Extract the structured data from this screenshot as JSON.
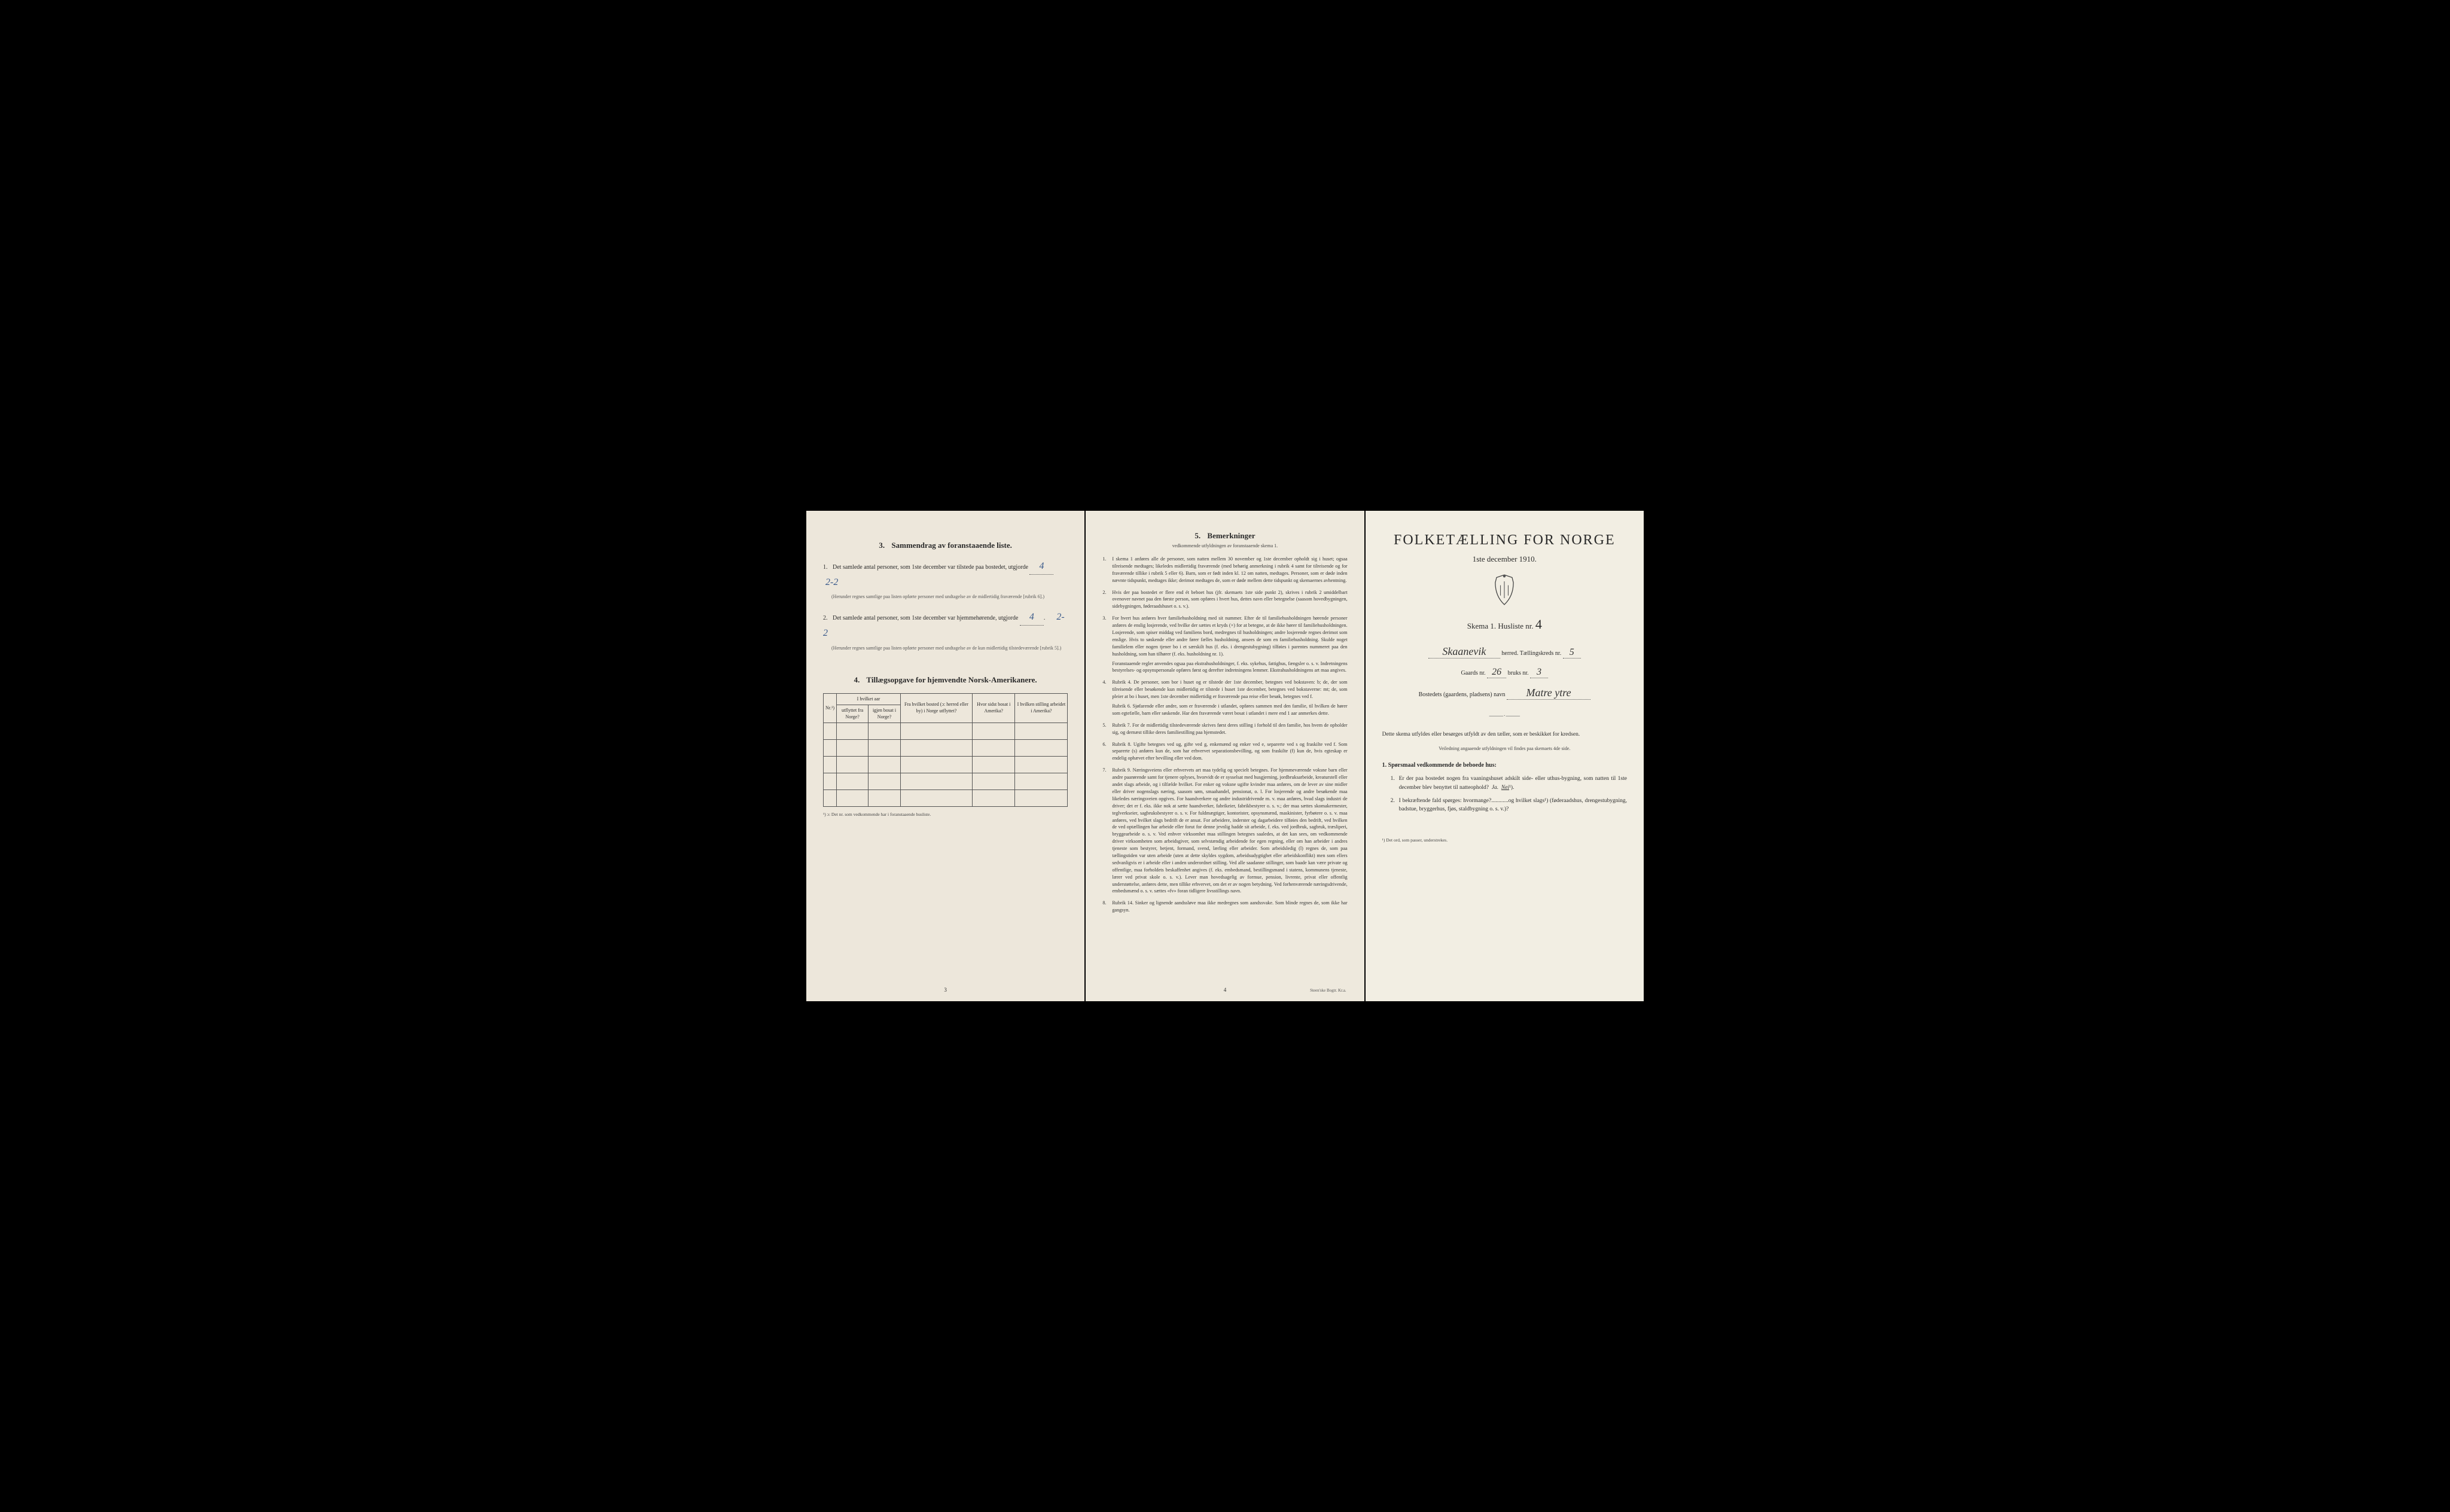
{
  "left": {
    "section3_title": "Sammendrag av foranstaaende liste.",
    "section3_num": "3.",
    "item1_label": "Det samlede antal personer, som 1ste december var tilstede paa bostedet, utgjorde",
    "item1_num": "1.",
    "item1_value": "4",
    "item1_value2": "2-2",
    "item1_note": "(Herunder regnes samtlige paa listen opførte personer med undtagelse av de midlertidig fraværende [rubrik 6].)",
    "item2_label": "Det samlede antal personer, som 1ste december var hjemmehørende, utgjorde",
    "item2_num": "2.",
    "item2_value": "4",
    "item2_value2": "2-2",
    "item2_note": "(Herunder regnes samtlige paa listen opførte personer med undtagelse av de kun midlertidig tilstedeværende [rubrik 5].)",
    "section4_title": "Tillægsopgave for hjemvendte Norsk-Amerikanere.",
    "section4_num": "4.",
    "table_headers": {
      "col1": "Nr.¹)",
      "col2_group": "I hvilket aar",
      "col2a": "utflyttet fra Norge?",
      "col2b": "igjen bosat i Norge?",
      "col3": "Fra hvilket bosted (ɔ: herred eller by) i Norge utflyttet?",
      "col4": "Hvor sidst bosat i Amerika?",
      "col5": "I hvilken stilling arbeidet i Amerika?"
    },
    "table_footnote": "¹) ɔ: Det nr. som vedkommende har i foranstaaende husliste.",
    "page_num": "3"
  },
  "mid": {
    "section5_title": "Bemerkninger",
    "section5_num": "5.",
    "subtitle": "vedkommende utfyldningen av foranstaaende skema 1.",
    "remarks": [
      {
        "n": "1.",
        "t": "I skema 1 anføres alle de personer, som natten mellem 30 november og 1ste december opholdt sig i huset; ogsaa tilreisende medtages; likeledes midlertidig fraværende (med behørig anmerkning i rubrik 4 samt for tilreisende og for fraværende tillike i rubrik 5 eller 6). Barn, som er født inden kl. 12 om natten, medtages. Personer, som er døde inden nævnte tidspunkt, medtages ikke; derimot medtages de, som er døde mellem dette tidspunkt og skemaernes avhentning."
      },
      {
        "n": "2.",
        "t": "Hvis der paa bostedet er flere end ét beboet hus (jfr. skemaets 1ste side punkt 2), skrives i rubrik 2 umiddelbart ovenover navnet paa den første person, som opføres i hvert hus, dettes navn eller betegnelse (saasom hovedbygningen, sidebygningen, føderaadshuset o. s. v.)."
      },
      {
        "n": "3.",
        "t": "For hvert hus anføres hver familiehusholdning med sit nummer. Efter de til familiehusholdningen hørende personer anføres de enslig losjerende, ved hvilke der sættes et kryds (×) for at betegne, at de ikke hører til familiehusholdningen. Losjerende, som spiser middag ved familiens bord, medregnes til husholdningen; andre losjerende regnes derimot som enslige. Hvis to søskende eller andre fører fælles husholdning, ansees de som en familiehusholdning. Skulde noget familielem eller nogen tjener bo i et særskilt hus (f. eks. i drengestubygning) tilføies i parentes nummeret paa den husholdning, som han tilhører (f. eks. husholdning nr. 1).",
        "sub": "Foranstaaende regler anvendes ogsaa paa ekstrahusholdninger, f. eks. sykehus, fattighus, fængsler o. s. v. Indretningens bestyrelses- og opsynspersonale opføres først og derefter indretningens lemmer. Ekstrahusholdningens art maa angives."
      },
      {
        "n": "4.",
        "t": "Rubrik 4. De personer, som bor i huset og er tilstede der 1ste december, betegnes ved bokstaven: b; de, der som tilreisende eller besøkende kun midlertidig er tilstede i huset 1ste december, betegnes ved bokstaverne: mt; de, som pleier at bo i huset, men 1ste december midlertidig er fraværende paa reise eller besøk, betegnes ved f.",
        "sub": "Rubrik 6. Sjøfarende eller andre, som er fraværende i utlandet, opføres sammen med den familie, til hvilken de hører som egtefælle, barn eller søskende. Har den fraværende været bosat i utlandet i mere end 1 aar anmerkes dette."
      },
      {
        "n": "5.",
        "t": "Rubrik 7. For de midlertidig tilstedeværende skrives først deres stilling i forhold til den familie, hos hvem de opholder sig, og dernæst tillike deres familiestilling paa hjemstedet."
      },
      {
        "n": "6.",
        "t": "Rubrik 8. Ugifte betegnes ved ug, gifte ved g, enkemænd og enker ved e, separerte ved s og fraskilte ved f. Som separerte (s) anføres kun de, som har erhvervet separationsbevilling, og som fraskilte (f) kun de, hvis egteskap er endelig ophævet efter bevilling eller ved dom."
      },
      {
        "n": "7.",
        "t": "Rubrik 9. Næringsveiens eller erhvervets art maa tydelig og specielt betegnes. For hjemmeværende voksne barn eller andre paarørende samt for tjenere oplyses, hvorvidt de er sysselsat med husgjerning, jordbruksarbeide, kreaturstell eller andet slags arbeide, og i tilfælde hvilket. For enker og voksne ugifte kvinder maa anføres, om de lever av sine midler eller driver nogenslags næring, saasom søm, smaahandel, pensionat, o. l. For losjerende og andre besøkende maa likeledes næringsveien opgives. For haandverkere og andre industridrivende m. v. maa anføres, hvad slags industri de driver; det er f. eks. ikke nok at sætte haandverker, fabrikeier, fabrikbestyrer o. s. v.; der maa sættes skomakermester, teglverkseier, sagbruksbestyrer o. s. v. For fuldmægtiger, kontorister, opsynsmænd, maskinister, fyrbøtere o. s. v. maa anføres, ved hvilket slags bedrift de er ansat. For arbeidere, inderster og dagarbeidere tilføies den bedrift, ved hvilken de ved optællingen har arbeide eller forut for denne jevnlig hadde sit arbeide, f. eks. ved jordbruk, sagbruk, træsliperi, bryggearbeide o. s. v. Ved enhver virksomhet maa stillingen betegnes saaledes, at det kan sees, om vedkommende driver virksomheten som arbeidsgiver, som selvstændig arbeidende for egen regning, eller om han arbeider i andres tjeneste som bestyrer, betjent, formand, svend, lærling eller arbeider. Som arbeidsledig (l) regnes de, som paa tællingstiden var uten arbeide (uten at dette skyldes sygdom, arbeidsudygtighet eller arbeidskonflikt) men som ellers sedvanligvis er i arbeide eller i anden underordnet stilling. Ved alle saadanne stillinger, som baade kan være private og offentlige, maa forholdets beskaffenhet angives (f. eks. embedsmand, bestillingsmand i statens, kommunens tjeneste, lærer ved privat skole o. s. v.). Lever man hovedsagelig av formue, pension, livrente, privat eller offentlig understøttelse, anføres dette, men tillike erhvervet, om det er av nogen betydning. Ved forhenværende næringsdrivende, embedsmænd o. s. v. sættes «fv» foran tidligere livsstillings navn."
      },
      {
        "n": "8.",
        "t": "Rubrik 14. Sinker og lignende aandssløve maa ikke medregnes som aandssvake. Som blinde regnes de, som ikke har gangsyn."
      }
    ],
    "page_num": "4",
    "printer": "Steen'ske Bogtr. Kr.a."
  },
  "right": {
    "main_title": "FOLKETÆLLING FOR NORGE",
    "date": "1ste december 1910.",
    "skema_label": "Skema 1.  Husliste nr.",
    "husliste_nr": "4",
    "herred_value": "Skaanevik",
    "herred_label": "herred.  Tællingskreds nr.",
    "kreds_nr": "5",
    "gaards_label": "Gaards nr.",
    "gaards_nr": "26",
    "bruks_label": "bruks nr.",
    "bruks_nr": "3",
    "bosted_label": "Bostedets (gaardens, pladsens) navn",
    "bosted_value": "Matre ytre",
    "instruction": "Dette skema utfyldes eller besørges utfyldt av den tæller, som er beskikket for kredsen.",
    "instruction_sub": "Veiledning angaaende utfyldningen vil findes paa skemaets 4de side.",
    "questions_head": "1. Spørsmaal vedkommende de beboede hus:",
    "q1_num": "1.",
    "q1_text": "Er der paa bostedet nogen fra vaaningshuset adskilt side- eller uthus-bygning, som natten til 1ste december blev benyttet til natteophold?",
    "q1_ja": "Ja.",
    "q1_nei": "Nei",
    "q2_num": "2.",
    "q2_text": "I bekræftende fald spørges: hvormange?............og hvilket slags¹) (føderaadshus, drengestubygning, badstue, bryggerhus, fjøs, staldbygning o. s. v.)?",
    "footnote": "¹) Det ord, som passer, understrekes."
  },
  "colors": {
    "paper_left": "#ede7db",
    "paper_mid": "#eee9dd",
    "paper_right": "#f2eee3",
    "ink": "#2a2a2a",
    "handwriting": "#3a5a8a",
    "background": "#000000"
  }
}
